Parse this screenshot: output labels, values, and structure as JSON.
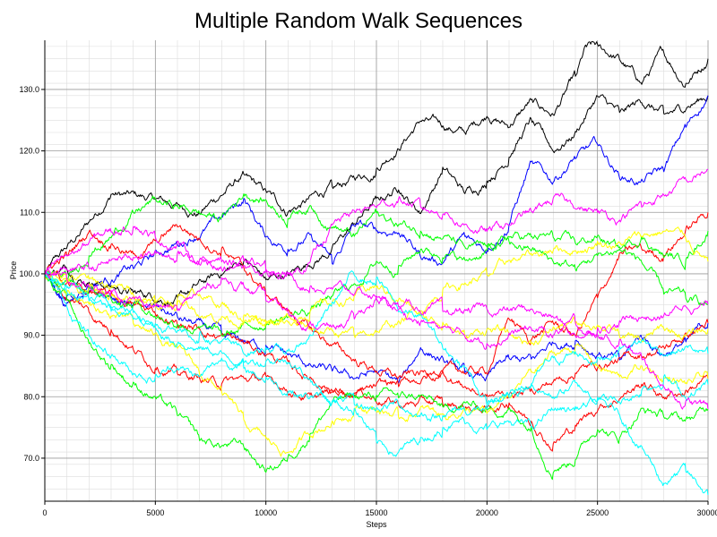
{
  "chart_data": {
    "type": "line",
    "title": "Multiple Random Walk Sequences",
    "xlabel": "Steps",
    "ylabel": "Price",
    "xlim": [
      0,
      30000
    ],
    "ylim": [
      63,
      138
    ],
    "x_ticks": [
      0,
      5000,
      10000,
      15000,
      20000,
      25000,
      30000
    ],
    "x_tick_labels": [
      "0",
      "5000",
      "10000",
      "15000",
      "20000",
      "25000",
      "30000"
    ],
    "y_ticks": [
      70,
      80,
      90,
      100,
      110,
      120,
      130
    ],
    "y_tick_labels": [
      "70.0",
      "80.0",
      "90.0",
      "100.0",
      "110.0",
      "120.0",
      "130.0"
    ],
    "grid": true,
    "minor_grid": true,
    "legend": "none",
    "series": [
      {
        "color": "#000000",
        "x": [
          0,
          1500,
          3000,
          5000,
          7000,
          9000,
          11000,
          13000,
          15000,
          17000,
          19000,
          20000,
          21000,
          22000,
          23000,
          24000,
          24500,
          25000,
          26000,
          27000,
          28000,
          29000,
          30000
        ],
        "values": [
          100,
          106,
          113,
          112,
          110,
          116,
          110,
          114,
          117,
          125,
          123,
          126,
          124,
          128,
          126,
          132,
          137,
          137,
          135,
          131,
          136,
          131,
          135
        ]
      },
      {
        "color": "#000000",
        "x": [
          0,
          1000,
          2000,
          4000,
          6000,
          8000,
          9000,
          10000,
          11000,
          13000,
          15000,
          16000,
          17000,
          18000,
          19000,
          20000,
          21000,
          22000,
          23000,
          24000,
          25000,
          26000,
          27000,
          28000,
          29000,
          30000
        ],
        "values": [
          100,
          101,
          99,
          97,
          96,
          100,
          102,
          99,
          100,
          104,
          112,
          114,
          110,
          117,
          113,
          115,
          119,
          125,
          120,
          123,
          129,
          126,
          128,
          126,
          127,
          129
        ]
      },
      {
        "color": "#0000ff",
        "x": [
          0,
          1000,
          2000,
          4000,
          6000,
          8000,
          9000,
          10000,
          11000,
          12000,
          13000,
          14000,
          15000,
          16000,
          17000,
          18000,
          19000,
          20000,
          21000,
          22000,
          23000,
          24000,
          25000,
          26000,
          27000,
          28000,
          29000,
          30000
        ],
        "values": [
          100,
          95,
          98,
          101,
          105,
          109,
          112,
          106,
          104,
          106,
          102,
          108,
          107,
          107,
          103,
          102,
          106,
          104,
          108,
          118,
          115,
          119,
          121,
          116,
          115,
          117,
          124,
          129
        ]
      },
      {
        "color": "#0000ff",
        "x": [
          0,
          1000,
          2000,
          4000,
          6000,
          8000,
          10000,
          12000,
          13000,
          14000,
          15000,
          16000,
          17000,
          18000,
          19000,
          20000,
          21000,
          22000,
          23000,
          24000,
          25000,
          26000,
          27000,
          28000,
          29000,
          30000
        ],
        "values": [
          100,
          96,
          97,
          95,
          93,
          90,
          88,
          85,
          84,
          83,
          84,
          82,
          88,
          86,
          84,
          83,
          86,
          86,
          89,
          89,
          87,
          86,
          90,
          87,
          89,
          92
        ]
      },
      {
        "color": "#ff0000",
        "x": [
          0,
          1000,
          2000,
          3000,
          4000,
          5000,
          6000,
          8000,
          10000,
          12000,
          14000,
          16000,
          18000,
          20000,
          21000,
          22000,
          23000,
          24000,
          25000,
          26000,
          27000,
          28000,
          29000,
          30000
        ],
        "values": [
          100,
          103,
          107,
          105,
          103,
          105,
          108,
          104,
          97,
          91,
          86,
          83,
          84,
          84,
          93,
          89,
          92,
          90,
          96,
          103,
          104,
          103,
          107,
          110
        ]
      },
      {
        "color": "#ff0000",
        "x": [
          0,
          1000,
          2000,
          3000,
          4000,
          5000,
          6000,
          8000,
          10000,
          12000,
          14000,
          16000,
          18000,
          20000,
          21000,
          22000,
          23000,
          24000,
          25000,
          26000,
          27000,
          28000,
          29000,
          30000
        ],
        "values": [
          100,
          96,
          94,
          91,
          88,
          85,
          84,
          82,
          83,
          80,
          81,
          79,
          79,
          78,
          79,
          76,
          72,
          75,
          78,
          80,
          82,
          80,
          81,
          83
        ]
      },
      {
        "color": "#ff0000",
        "x": [
          0,
          2000,
          4000,
          6000,
          8000,
          10000,
          12000,
          14000,
          16000,
          18000,
          20000,
          22000,
          24000,
          26000,
          28000,
          30000
        ],
        "values": [
          100,
          97,
          95,
          92,
          90,
          87,
          83,
          80,
          82,
          84,
          80,
          81,
          84,
          86,
          88,
          92
        ]
      },
      {
        "color": "#00ff00",
        "x": [
          0,
          1000,
          2000,
          3000,
          4000,
          5000,
          6000,
          7000,
          8000,
          9000,
          10000,
          11000,
          12000,
          13000,
          14000,
          15000,
          16000,
          17000,
          18000,
          19000,
          20000,
          21000,
          22000,
          23000,
          24000,
          25000,
          26000,
          27000,
          28000,
          29000,
          30000
        ],
        "values": [
          100,
          99,
          103,
          106,
          110,
          112,
          111,
          110,
          109,
          113,
          112,
          109,
          111,
          108,
          106,
          110,
          108,
          107,
          106,
          104,
          104,
          106,
          106,
          106,
          105,
          106,
          104,
          106,
          103,
          102,
          107
        ]
      },
      {
        "color": "#00ff00",
        "x": [
          0,
          1000,
          2000,
          3000,
          4000,
          5000,
          6000,
          7000,
          8000,
          9000,
          10000,
          11000,
          12000,
          13000,
          14000,
          15000,
          16000,
          17000,
          18000,
          19000,
          20000,
          21000,
          22000,
          23000,
          24000,
          25000,
          26000,
          27000,
          28000,
          29000,
          30000
        ],
        "values": [
          100,
          96,
          89,
          85,
          82,
          80,
          77,
          73,
          72,
          72,
          68,
          70,
          74,
          79,
          80,
          80,
          80,
          80,
          78,
          79,
          78,
          78,
          75,
          68,
          70,
          75,
          73,
          78,
          77,
          76,
          78
        ]
      },
      {
        "color": "#00ff00",
        "x": [
          0,
          2000,
          4000,
          6000,
          8000,
          10000,
          12000,
          14000,
          15000,
          16000,
          17000,
          18000,
          19000,
          20000,
          21000,
          22000,
          23000,
          24000,
          25000,
          26000,
          27000,
          28000,
          29000,
          30000
        ],
        "values": [
          100,
          98,
          95,
          92,
          90,
          92,
          94,
          98,
          102,
          101,
          104,
          103,
          102,
          104,
          105,
          104,
          102,
          101,
          103,
          104,
          102,
          97,
          96,
          95
        ]
      },
      {
        "color": "#ffff00",
        "x": [
          0,
          1000,
          2000,
          3000,
          4000,
          5000,
          6000,
          7000,
          8000,
          9000,
          10000,
          11000,
          12000,
          13000,
          14000,
          15000,
          16000,
          17000,
          18000,
          19000,
          20000,
          21000,
          22000,
          23000,
          24000,
          25000,
          26000,
          27000,
          28000,
          29000,
          30000
        ],
        "values": [
          100,
          97,
          95,
          93,
          92,
          90,
          88,
          84,
          81,
          76,
          73,
          71,
          74,
          76,
          78,
          78,
          77,
          78,
          77,
          78,
          77,
          80,
          84,
          87,
          88,
          85,
          83,
          85,
          83,
          82,
          83
        ]
      },
      {
        "color": "#ffff00",
        "x": [
          0,
          1000,
          2000,
          3000,
          4000,
          5000,
          6000,
          7000,
          8000,
          9000,
          10000,
          11000,
          12000,
          13000,
          14000,
          15000,
          16000,
          17000,
          18000,
          19000,
          20000,
          21000,
          22000,
          23000,
          24000,
          25000,
          26000,
          27000,
          28000,
          29000,
          30000
        ],
        "values": [
          100,
          99,
          98,
          97,
          96,
          95,
          96,
          97,
          95,
          93,
          92,
          93,
          94,
          95,
          96,
          98,
          96,
          93,
          92,
          90,
          91,
          90,
          89,
          91,
          92,
          92,
          90,
          89,
          91,
          90,
          91
        ]
      },
      {
        "color": "#ffff00",
        "x": [
          0,
          2000,
          4000,
          6000,
          8000,
          10000,
          12000,
          14000,
          16000,
          18000,
          20000,
          21000,
          22000,
          23000,
          24000,
          25000,
          26000,
          27000,
          28000,
          29000,
          30000
        ],
        "values": [
          100,
          99,
          97,
          95,
          93,
          92,
          91,
          90,
          92,
          97,
          100,
          102,
          103,
          104,
          104,
          105,
          105,
          106,
          107,
          106,
          102
        ]
      },
      {
        "color": "#00ffff",
        "x": [
          0,
          1000,
          2000,
          3000,
          4000,
          5000,
          6000,
          7000,
          8000,
          9000,
          10000,
          11000,
          12000,
          13000,
          14000,
          15000,
          16000,
          17000,
          18000,
          19000,
          20000,
          21000,
          22000,
          23000,
          24000,
          25000,
          26000,
          27000,
          28000,
          29000,
          30000
        ],
        "values": [
          100,
          97,
          96,
          94,
          93,
          91,
          89,
          88,
          87,
          86,
          86,
          86,
          83,
          79,
          78,
          73,
          71,
          73,
          75,
          76,
          75,
          76,
          75,
          78,
          78,
          79,
          77,
          72,
          66,
          68,
          64
        ]
      },
      {
        "color": "#00ffff",
        "x": [
          0,
          1000,
          2000,
          3000,
          4000,
          5000,
          6000,
          7000,
          8000,
          9000,
          10000,
          11000,
          12000,
          13000,
          14000,
          15000,
          16000,
          17000,
          18000,
          19000,
          20000,
          21000,
          22000,
          23000,
          24000,
          25000,
          26000,
          27000,
          28000,
          29000,
          30000
        ],
        "values": [
          100,
          98,
          96,
          95,
          94,
          92,
          91,
          90,
          89,
          87,
          88,
          87,
          90,
          95,
          100,
          99,
          94,
          93,
          88,
          85,
          79,
          80,
          82,
          80,
          82,
          80,
          79,
          81,
          83,
          80,
          82
        ]
      },
      {
        "color": "#00ffff",
        "x": [
          0,
          1000,
          2000,
          3000,
          4000,
          5000,
          6000,
          7000,
          8000,
          9000,
          10000,
          11000,
          12000,
          13000,
          14000,
          15000,
          16000,
          17000,
          18000,
          19000,
          20000,
          21000,
          22000,
          23000,
          24000,
          25000,
          26000,
          27000,
          28000,
          29000,
          30000
        ],
        "values": [
          100,
          95,
          90,
          87,
          84,
          83,
          85,
          83,
          86,
          85,
          83,
          81,
          80,
          79,
          79,
          78,
          79,
          77,
          77,
          78,
          78,
          80,
          82,
          86,
          87,
          86,
          88,
          89,
          87,
          88,
          87
        ]
      },
      {
        "color": "#ff00ff",
        "x": [
          0,
          1000,
          2000,
          3000,
          4000,
          5000,
          6000,
          7000,
          8000,
          9000,
          10000,
          11000,
          12000,
          13000,
          14000,
          15000,
          16000,
          17000,
          18000,
          19000,
          20000,
          21000,
          22000,
          23000,
          24000,
          25000,
          26000,
          27000,
          28000,
          29000,
          30000
        ],
        "values": [
          100,
          103,
          105,
          107,
          108,
          106,
          105,
          102,
          101,
          102,
          101,
          100,
          102,
          108,
          110,
          111,
          112,
          111,
          110,
          108,
          107,
          108,
          110,
          112,
          111,
          110,
          109,
          111,
          113,
          115,
          117
        ]
      },
      {
        "color": "#ff00ff",
        "x": [
          0,
          1000,
          2000,
          3000,
          4000,
          5000,
          6000,
          7000,
          8000,
          9000,
          10000,
          11000,
          12000,
          13000,
          14000,
          15000,
          16000,
          17000,
          18000,
          19000,
          20000,
          21000,
          22000,
          23000,
          24000,
          25000,
          26000,
          27000,
          28000,
          29000,
          30000
        ],
        "values": [
          100,
          99,
          98,
          97,
          96,
          95,
          94,
          97,
          99,
          98,
          96,
          94,
          92,
          91,
          93,
          96,
          94,
          92,
          91,
          90,
          89,
          90,
          91,
          90,
          92,
          90,
          89,
          86,
          82,
          79,
          78
        ]
      },
      {
        "color": "#ff00ff",
        "x": [
          0,
          2000,
          4000,
          6000,
          8000,
          10000,
          12000,
          14000,
          16000,
          18000,
          20000,
          22000,
          23000,
          24000,
          25000,
          26000,
          27000,
          28000,
          29000,
          30000
        ],
        "values": [
          100,
          101,
          103,
          103,
          102,
          101,
          98,
          97,
          95,
          94,
          94,
          94,
          93,
          90,
          91,
          92,
          93,
          93,
          95,
          95
        ]
      }
    ]
  }
}
